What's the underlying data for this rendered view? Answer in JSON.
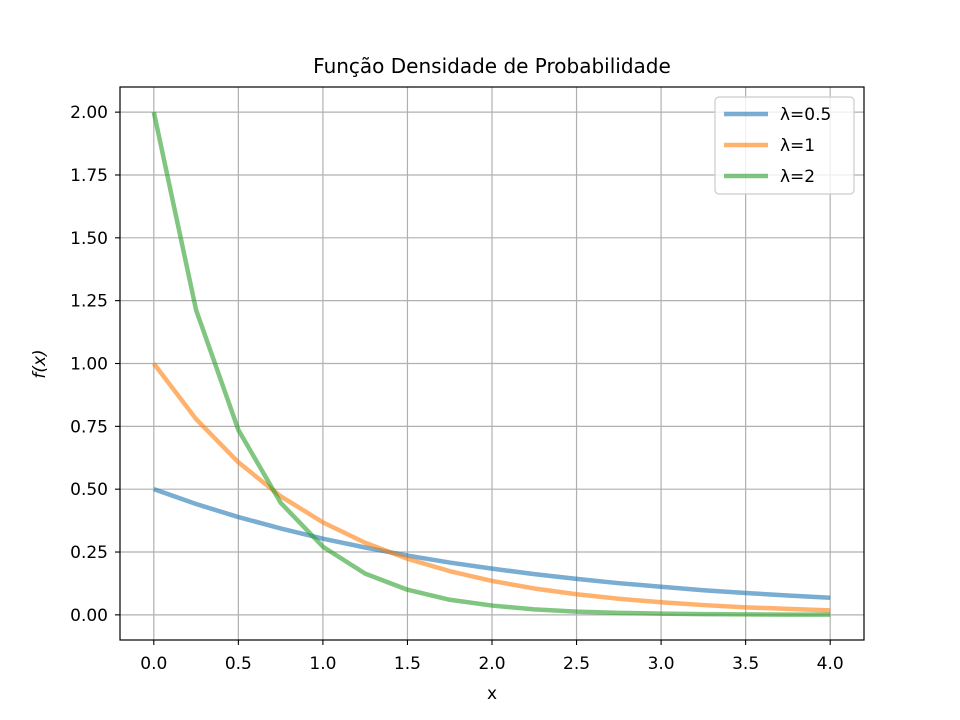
{
  "chart_data": {
    "type": "line",
    "title": "Função Densidade de Probabilidade",
    "xlabel": "x",
    "ylabel": "f(x)",
    "xlim": [
      -0.2,
      4.2
    ],
    "ylim": [
      -0.1,
      2.1
    ],
    "xticks": [
      0,
      0.5,
      1,
      1.5,
      2,
      2.5,
      3,
      3.5,
      4
    ],
    "xtick_labels": [
      "0.0",
      "0.5",
      "1.0",
      "1.5",
      "2.0",
      "2.5",
      "3.0",
      "3.5",
      "4.0"
    ],
    "yticks": [
      0,
      0.25,
      0.5,
      0.75,
      1,
      1.25,
      1.5,
      1.75,
      2
    ],
    "ytick_labels": [
      "0.00",
      "0.25",
      "0.50",
      "0.75",
      "1.00",
      "1.25",
      "1.50",
      "1.75",
      "2.00"
    ],
    "grid": true,
    "legend_position": "top-right",
    "x": [
      0,
      0.25,
      0.5,
      0.75,
      1,
      1.25,
      1.5,
      1.75,
      2,
      2.25,
      2.5,
      2.75,
      3,
      3.25,
      3.5,
      3.75,
      4
    ],
    "series": [
      {
        "name": "λ=0.5",
        "color": "#1f77b4",
        "values": [
          0.5,
          0.441,
          0.389,
          0.344,
          0.303,
          0.268,
          0.236,
          0.208,
          0.184,
          0.162,
          0.143,
          0.126,
          0.112,
          0.098,
          0.087,
          0.077,
          0.068
        ]
      },
      {
        "name": "λ=1",
        "color": "#ff7f0e",
        "values": [
          1.0,
          0.779,
          0.607,
          0.472,
          0.368,
          0.287,
          0.223,
          0.174,
          0.135,
          0.105,
          0.082,
          0.064,
          0.05,
          0.039,
          0.03,
          0.024,
          0.018
        ]
      },
      {
        "name": "λ=2",
        "color": "#2ca02c",
        "values": [
          2.0,
          1.213,
          0.736,
          0.446,
          0.271,
          0.164,
          0.1,
          0.06,
          0.037,
          0.022,
          0.013,
          0.008,
          0.005,
          0.003,
          0.002,
          0.001,
          0.001
        ]
      }
    ]
  }
}
